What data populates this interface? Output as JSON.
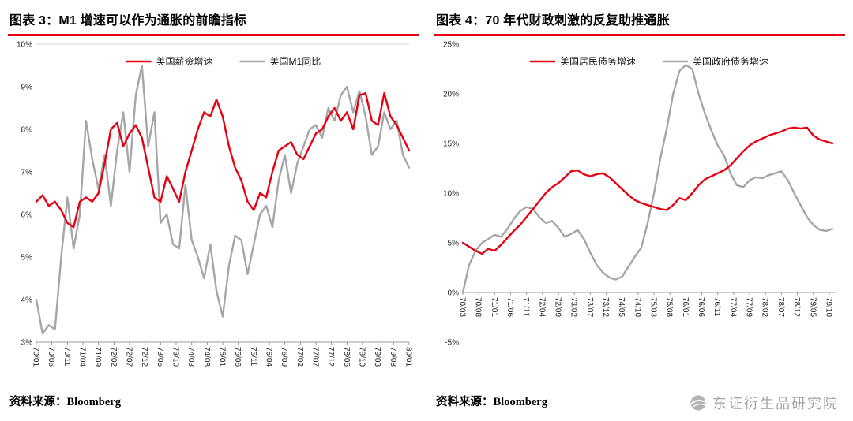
{
  "watermark": {
    "text": "东证衍生品研究院"
  },
  "chart_data": [
    {
      "type": "line",
      "title": "图表 3：M1 增速可以作为通胀的前瞻指标",
      "source_label": "资料来源：",
      "source_value": "Bloomberg",
      "ylim": [
        3,
        10
      ],
      "y_step": 1,
      "y_suffix": "%",
      "x_range": [
        0,
        120
      ],
      "baseline": 3,
      "top_border": true,
      "grid": false,
      "legend_position": "top-center",
      "x_tick_positions": [
        0,
        5,
        10,
        15,
        20,
        25,
        30,
        35,
        40,
        45,
        50,
        55,
        60,
        65,
        70,
        75,
        80,
        85,
        90,
        95,
        100,
        105,
        110,
        115,
        120
      ],
      "x_tick_labels": [
        "70/01",
        "70/06",
        "70/11",
        "71/04",
        "71/09",
        "72/02",
        "72/07",
        "72/12",
        "73/05",
        "73/10",
        "74/03",
        "74/08",
        "75/01",
        "75/06",
        "75/11",
        "76/04",
        "76/09",
        "77/02",
        "77/07",
        "77/12",
        "78/05",
        "78/10",
        "79/03",
        "79/08",
        "80/01"
      ],
      "series": [
        {
          "name": "美国薪资增速",
          "color": "#e60012",
          "x_start": 0,
          "x_step": 2,
          "values": [
            6.3,
            6.45,
            6.2,
            6.3,
            6.1,
            5.8,
            5.7,
            6.3,
            6.4,
            6.3,
            6.5,
            7.2,
            8.0,
            8.15,
            7.6,
            7.9,
            8.1,
            7.8,
            7.1,
            6.4,
            6.3,
            6.9,
            6.6,
            6.3,
            7.0,
            7.5,
            8.0,
            8.4,
            8.3,
            8.7,
            8.3,
            7.6,
            7.1,
            6.8,
            6.3,
            6.1,
            6.5,
            6.4,
            7.0,
            7.5,
            7.6,
            7.7,
            7.4,
            7.3,
            7.6,
            7.9,
            8.0,
            8.3,
            8.5,
            8.2,
            8.4,
            8.0,
            8.8,
            8.85,
            8.2,
            8.1,
            8.85,
            8.3,
            8.1,
            7.8,
            7.5
          ]
        },
        {
          "name": "美国M1同比",
          "color": "#a6a6a6",
          "x_start": 0,
          "x_step": 2,
          "values": [
            4.0,
            3.2,
            3.4,
            3.3,
            5.0,
            6.4,
            5.2,
            6.0,
            8.2,
            7.3,
            6.6,
            7.4,
            6.2,
            7.5,
            8.4,
            7.0,
            8.8,
            9.5,
            7.6,
            8.4,
            5.8,
            6.0,
            5.3,
            5.2,
            6.7,
            5.4,
            5.0,
            4.5,
            5.3,
            4.2,
            3.6,
            4.8,
            5.5,
            5.4,
            4.6,
            5.3,
            6.0,
            6.2,
            5.7,
            6.8,
            7.4,
            6.5,
            7.2,
            7.6,
            8.0,
            8.1,
            7.8,
            8.5,
            8.2,
            8.8,
            9.0,
            8.4,
            8.9,
            8.3,
            7.4,
            7.6,
            8.4,
            8.0,
            8.2,
            7.4,
            7.1
          ]
        }
      ]
    },
    {
      "type": "line",
      "title": "图表 4：70 年代财政刺激的反复助推通胀",
      "source_label": "资料来源：",
      "source_value": "Bloomberg",
      "ylim": [
        -5,
        25
      ],
      "y_step": 5,
      "y_suffix": "%",
      "x_range": [
        0,
        117
      ],
      "baseline": 0,
      "top_border": false,
      "grid": false,
      "legend_position": "top-center",
      "x_tick_positions": [
        0,
        5,
        10,
        15,
        20,
        25,
        30,
        35,
        40,
        45,
        50,
        55,
        60,
        65,
        70,
        75,
        80,
        85,
        90,
        95,
        100,
        105,
        110,
        115
      ],
      "x_tick_labels": [
        "70/03",
        "70/08",
        "71/01",
        "71/06",
        "71/11",
        "72/04",
        "72/09",
        "73/02",
        "73/07",
        "73/12",
        "74/05",
        "74/10",
        "75/03",
        "75/08",
        "76/01",
        "76/06",
        "76/11",
        "77/04",
        "77/09",
        "78/02",
        "78/07",
        "78/12",
        "79/05",
        "79/10"
      ],
      "series": [
        {
          "name": "美国居民债务增速",
          "color": "#e60012",
          "x_start": 0,
          "x_step": 2,
          "values": [
            5.0,
            4.6,
            4.2,
            3.9,
            4.4,
            4.2,
            4.8,
            5.5,
            6.2,
            6.8,
            7.6,
            8.4,
            9.2,
            10.0,
            10.6,
            11.0,
            11.6,
            12.2,
            12.3,
            11.9,
            11.7,
            11.9,
            12.0,
            11.6,
            11.0,
            10.4,
            9.8,
            9.3,
            9.0,
            8.8,
            8.6,
            8.4,
            8.3,
            8.8,
            9.5,
            9.3,
            10.0,
            10.8,
            11.4,
            11.7,
            12.0,
            12.3,
            12.8,
            13.5,
            14.2,
            14.8,
            15.2,
            15.5,
            15.8,
            16.0,
            16.2,
            16.5,
            16.6,
            16.5,
            16.6,
            15.8,
            15.4,
            15.2,
            15.0
          ]
        },
        {
          "name": "美国政府债务增速",
          "color": "#a6a6a6",
          "x_start": 0,
          "x_step": 2,
          "values": [
            0.0,
            2.8,
            4.2,
            5.0,
            5.4,
            5.8,
            5.6,
            6.4,
            7.4,
            8.2,
            8.6,
            8.4,
            7.6,
            7.0,
            7.2,
            6.5,
            5.6,
            5.9,
            6.3,
            5.4,
            4.0,
            2.8,
            2.0,
            1.5,
            1.3,
            1.6,
            2.6,
            3.6,
            4.5,
            7.0,
            10.0,
            13.5,
            16.5,
            20.0,
            22.3,
            22.9,
            22.5,
            20.0,
            18.0,
            16.3,
            14.8,
            13.8,
            12.0,
            10.8,
            10.6,
            11.3,
            11.6,
            11.5,
            11.8,
            12.0,
            12.2,
            11.3,
            10.0,
            8.8,
            7.6,
            6.8,
            6.3,
            6.2,
            6.4
          ]
        }
      ]
    }
  ]
}
